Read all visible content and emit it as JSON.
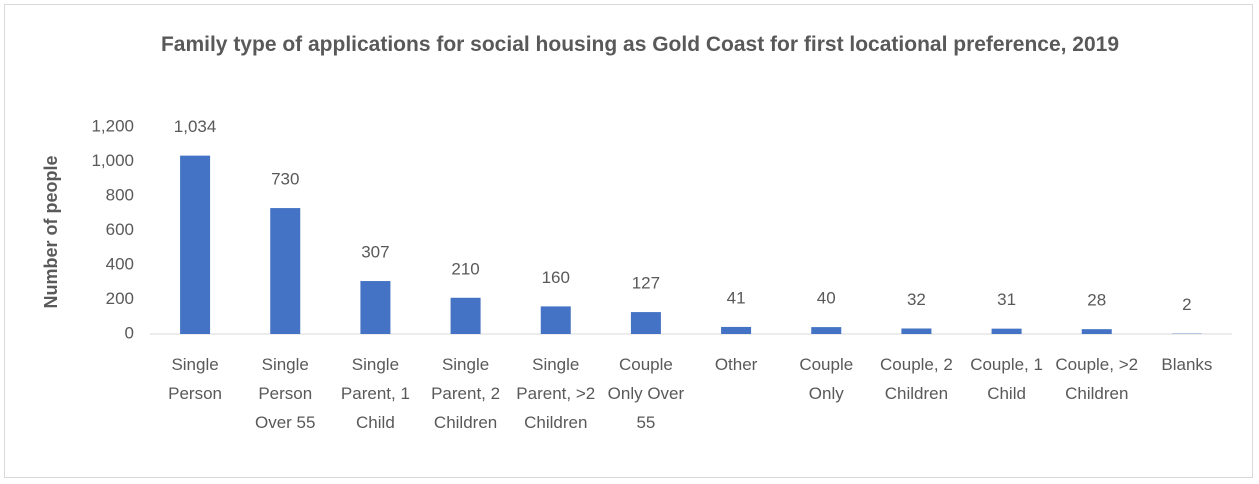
{
  "chart_data": {
    "type": "bar",
    "title": "Family type of applications for social housing as Gold Coast for first locational preference, 2019",
    "y_label": "Number of people",
    "categories": [
      "Single Person",
      "Single Person Over 55",
      "Single Parent, 1 Child",
      "Single Parent, 2 Children",
      "Single Parent, >2 Children",
      "Couple Only Over 55",
      "Other",
      "Couple Only",
      "Couple, 2 Children",
      "Couple, 1 Child",
      "Couple, >2 Children",
      "Blanks"
    ],
    "values": [
      1034,
      730,
      307,
      210,
      160,
      127,
      41,
      40,
      32,
      31,
      28,
      2
    ],
    "value_labels": [
      "1,034",
      "730",
      "307",
      "210",
      "160",
      "127",
      "41",
      "40",
      "32",
      "31",
      "28",
      "2"
    ],
    "color": "#4472c4",
    "ylim": [
      0,
      1200
    ],
    "yticks": [
      0,
      200,
      400,
      600,
      800,
      {
        "value": 1000,
        "label": "1,000"
      },
      {
        "value": 1200,
        "label": "1,200"
      }
    ],
    "grid": false
  }
}
